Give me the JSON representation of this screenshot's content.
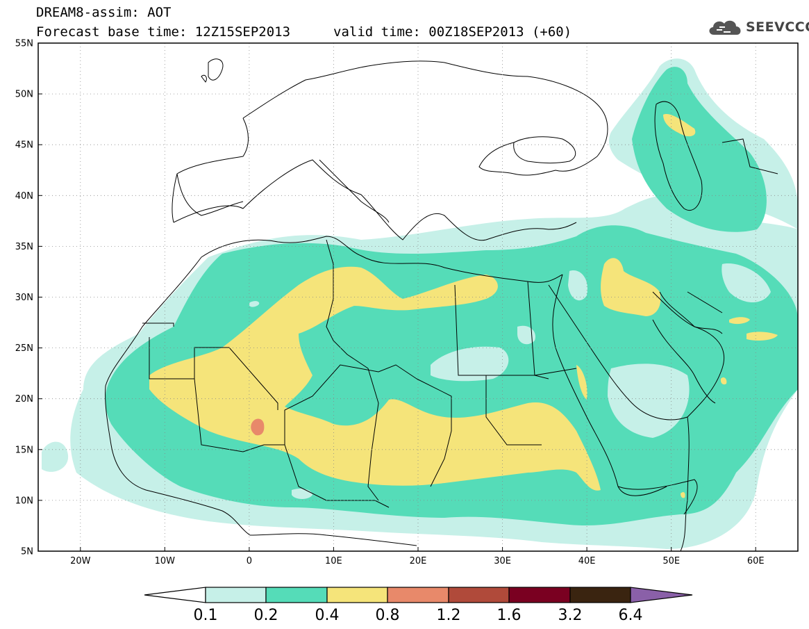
{
  "header": {
    "title": "DREAM8-assim: AOT",
    "forecast_base": "Forecast base time: 12Z15SEP2013",
    "valid_time": "valid time: 00Z18SEP2013 (+60)",
    "logo_text": "SEEVCCC",
    "logo_icon": "cloud-icon"
  },
  "map": {
    "lat_range": [
      5,
      55
    ],
    "lon_range": [
      -25,
      65
    ],
    "lat_labels": [
      "55N",
      "50N",
      "45N",
      "40N",
      "35N",
      "30N",
      "25N",
      "20N",
      "15N",
      "10N",
      "5N"
    ],
    "lon_labels": [
      "20W",
      "10W",
      "0",
      "10E",
      "20E",
      "30E",
      "40E",
      "50E",
      "60E"
    ],
    "grid": "dotted",
    "field": "Aerosol Optical Thickness"
  },
  "colorbar": {
    "labels": [
      "0.1",
      "0.2",
      "0.4",
      "0.8",
      "1.2",
      "1.6",
      "3.2",
      "6.4"
    ],
    "colors": [
      "#ffffff",
      "#c6f0e8",
      "#55dcb8",
      "#f5e47a",
      "#e8896a",
      "#b04a3a",
      "#7a0021",
      "#3a2410",
      "#8a60a8"
    ]
  }
}
